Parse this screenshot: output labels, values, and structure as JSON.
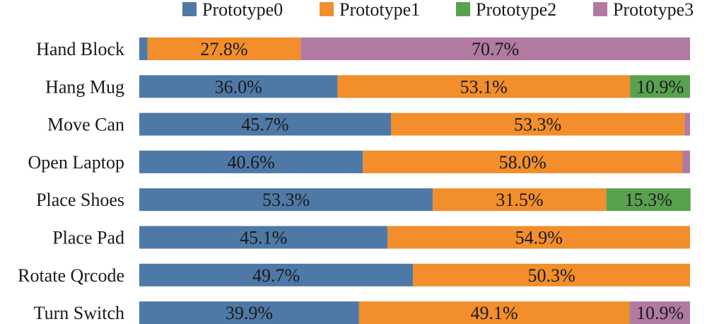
{
  "chart_data": {
    "type": "bar",
    "orientation": "horizontal",
    "stacked": true,
    "normalized": true,
    "categories": [
      "Hand Block",
      "Hang Mug",
      "Move Can",
      "Open Laptop",
      "Place Shoes",
      "Place Pad",
      "Rotate Qrcode",
      "Turn Switch"
    ],
    "series": [
      {
        "name": "Prototype0",
        "color": "#4e79a7",
        "values": [
          1.5,
          36.0,
          45.7,
          40.6,
          53.3,
          45.1,
          49.7,
          39.9
        ]
      },
      {
        "name": "Prototype1",
        "color": "#f28e2b",
        "values": [
          27.8,
          53.1,
          53.3,
          58.0,
          31.5,
          54.9,
          50.3,
          49.1
        ]
      },
      {
        "name": "Prototype2",
        "color": "#59a14f",
        "values": [
          0,
          10.9,
          0,
          0,
          15.3,
          0,
          0,
          0.1
        ]
      },
      {
        "name": "Prototype3",
        "color": "#b07aa1",
        "values": [
          70.7,
          0,
          1.0,
          1.4,
          0,
          0,
          0,
          10.9
        ]
      }
    ],
    "data_labels": [
      [
        "",
        "27.8%",
        "",
        "70.7%"
      ],
      [
        "36.0%",
        "53.1%",
        "10.9%",
        ""
      ],
      [
        "45.7%",
        "53.3%",
        "",
        ""
      ],
      [
        "40.6%",
        "58.0%",
        "",
        ""
      ],
      [
        "53.3%",
        "31.5%",
        "15.3%",
        ""
      ],
      [
        "45.1%",
        "54.9%",
        "",
        ""
      ],
      [
        "49.7%",
        "50.3%",
        "",
        ""
      ],
      [
        "39.9%",
        "49.1%",
        "",
        "10.9%"
      ]
    ],
    "xlim": [
      0,
      100
    ],
    "grid": false,
    "legend_position": "top"
  }
}
